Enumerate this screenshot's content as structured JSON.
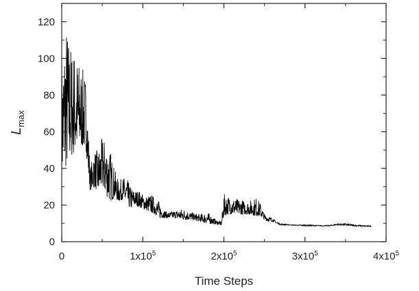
{
  "chart_data": {
    "type": "line",
    "xlabel": "Time Steps",
    "ylabel": "L",
    "ylabel_subscript": "max",
    "xlim": [
      0,
      400000
    ],
    "ylim": [
      0,
      130
    ],
    "x_ticks": [
      {
        "value": 0,
        "label": "0",
        "base": "0",
        "exp": ""
      },
      {
        "value": 100000,
        "label": "1x10^5",
        "base": "1x10",
        "exp": "5"
      },
      {
        "value": 200000,
        "label": "2x10^5",
        "base": "2x10",
        "exp": "5"
      },
      {
        "value": 300000,
        "label": "3x10^5",
        "base": "3x10",
        "exp": "5"
      },
      {
        "value": 400000,
        "label": "4x10^5",
        "base": "4x10",
        "exp": "5"
      }
    ],
    "y_ticks": [
      0,
      20,
      40,
      60,
      80,
      100,
      120
    ],
    "grid": false,
    "legend": "none",
    "series": [
      {
        "color": "#000000",
        "x": [
          0,
          5000,
          10000,
          15000,
          20000,
          25000,
          30000,
          35000,
          40000,
          45000,
          50000,
          55000,
          60000,
          65000,
          70000,
          75000,
          80000,
          85000,
          90000,
          95000,
          100000,
          105000,
          110000,
          115000,
          120000,
          125000,
          130000,
          140000,
          150000,
          160000,
          170000,
          180000,
          190000,
          197000,
          200000,
          205000,
          210000,
          220000,
          230000,
          240000,
          245000,
          250000,
          255000,
          260000,
          265000,
          270000,
          280000,
          290000,
          300000,
          310000,
          320000,
          330000,
          340000,
          350000,
          360000,
          370000,
          382000
        ],
        "y_low": [
          36,
          40,
          45,
          48,
          50,
          52,
          50,
          28,
          30,
          27,
          30,
          25,
          22,
          24,
          22,
          23,
          20,
          18,
          20,
          19,
          18,
          17,
          16,
          15,
          13,
          13,
          13,
          13,
          12,
          12,
          11,
          10,
          9.5,
          9,
          14,
          15,
          15,
          15,
          15,
          14,
          14,
          12,
          11,
          11,
          10,
          9,
          9,
          8.8,
          8.5,
          8.5,
          8.5,
          8.5,
          9,
          8.8,
          8.5,
          8.3,
          8.2
        ],
        "y_high": [
          95,
          122,
          110,
          105,
          100,
          95,
          90,
          40,
          50,
          50,
          57,
          55,
          50,
          40,
          33,
          35,
          35,
          30,
          28,
          28,
          26,
          25,
          26,
          24,
          22,
          18,
          16,
          17,
          18,
          16,
          15,
          16,
          12,
          11,
          26,
          25,
          24,
          23,
          22,
          24,
          21,
          15,
          14,
          13,
          11,
          10,
          9.5,
          9.2,
          9.5,
          9.2,
          9,
          9,
          10,
          10,
          9.5,
          9,
          8.8
        ]
      }
    ]
  }
}
